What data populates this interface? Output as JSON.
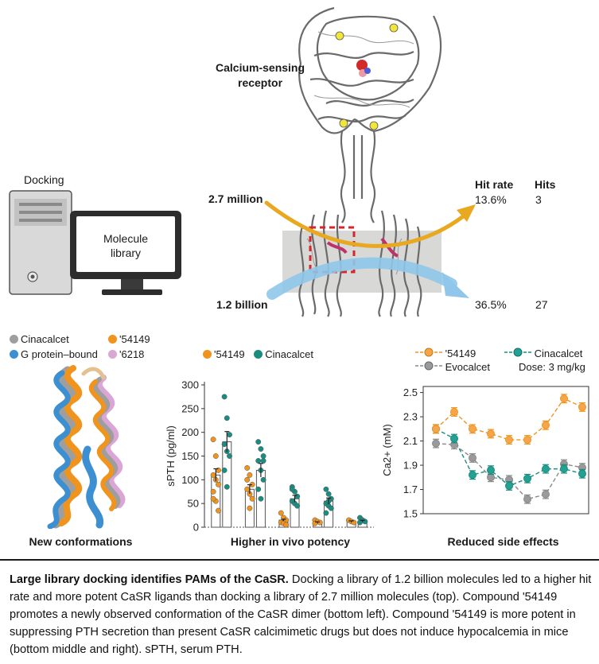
{
  "top_panel": {
    "receptor_label": "Calcium-sensing\nreceptor",
    "docking_label": "Docking",
    "screen_label": "Molecule\nlibrary",
    "header_hit_rate": "Hit rate",
    "header_hits": "Hits",
    "rows": [
      {
        "library": "2.7 million",
        "hit_rate": "13.6%",
        "hits": "3",
        "color": "#e8a820"
      },
      {
        "library": "1.2 billion",
        "hit_rate": "36.5%",
        "hits": "27",
        "color": "#6fb3e0"
      }
    ]
  },
  "left_panel": {
    "legend": [
      {
        "label": "Cinacalcet",
        "color": "#9e9e9e"
      },
      {
        "label": "'54149",
        "color": "#f0941e"
      },
      {
        "label": "G protein–bound",
        "color": "#3c8fd0"
      },
      {
        "label": "'6218",
        "color": "#d9a6d6"
      }
    ],
    "title": "New conformations"
  },
  "middle_panel": {
    "legend": [
      {
        "label": "'54149",
        "color": "#f0941e"
      },
      {
        "label": "Cinacalcet",
        "color": "#1a8c80"
      }
    ],
    "title": "Higher in vivo potency"
  },
  "right_panel": {
    "legend": [
      {
        "label": "'54149",
        "color": "#f0941e"
      },
      {
        "label": "Cinacalcet",
        "color": "#1a8c80"
      },
      {
        "label": "Evocalcet",
        "color": "#8a8a8a"
      }
    ],
    "dose_label": "Dose: 3 mg/kg",
    "title": "Reduced side effects"
  },
  "caption": {
    "title": "Large library docking identifies PAMs of the CaSR.",
    "body": " Docking a library of 1.2 billion molecules led to a higher hit rate and more potent CaSR ligands than docking a library of 2.7 million molecules (top). Compound '54149 promotes a newly observed conformation of the CaSR dimer (bottom left). Compound '54149 is more potent in suppressing PTH secretion than present CaSR calcimimetic drugs but does not induce hypocalcemia in mice (bottom middle and right). sPTH, serum PTH."
  },
  "chart_data": [
    {
      "type": "bar",
      "ylabel": "sPTH (pg/ml)",
      "ylim": [
        0,
        300
      ],
      "yticks": [
        0,
        50,
        100,
        150,
        200,
        250,
        300
      ],
      "series": [
        {
          "name": "'54149",
          "color": "#f0941e",
          "values": [
            110,
            80,
            15,
            10,
            12
          ]
        },
        {
          "name": "Cinacalcet",
          "color": "#1a8c80",
          "values": [
            180,
            120,
            60,
            55,
            13
          ]
        }
      ],
      "points": {
        "'54149": [
          [
            185,
            150,
            120,
            110,
            100,
            90,
            75,
            55,
            35,
            60
          ],
          [
            125,
            110,
            90,
            80,
            70,
            60,
            100,
            40
          ],
          [
            30,
            20,
            15,
            10,
            8,
            5
          ],
          [
            15,
            12,
            10,
            8
          ],
          [
            15,
            12,
            10
          ]
        ],
        "Cinacalcet": [
          [
            275,
            230,
            195,
            175,
            160,
            150,
            120,
            85
          ],
          [
            180,
            165,
            150,
            140,
            120,
            100,
            80,
            60,
            140
          ],
          [
            85,
            75,
            65,
            55,
            50,
            45,
            80
          ],
          [
            80,
            70,
            60,
            50,
            45,
            40,
            30,
            55
          ],
          [
            20,
            15,
            12,
            10
          ]
        ]
      }
    },
    {
      "type": "line",
      "ylabel": "Ca2+ (mM)",
      "ylim": [
        1.5,
        2.55
      ],
      "yticks": [
        1.5,
        1.7,
        1.9,
        2.1,
        2.3,
        2.5
      ],
      "series": [
        {
          "name": "'54149",
          "color": "#f0941e",
          "values": [
            2.2,
            2.34,
            2.2,
            2.16,
            2.11,
            2.11,
            2.23,
            2.45,
            2.38
          ]
        },
        {
          "name": "Cinacalcet",
          "color": "#1a8c80",
          "values": [
            2.2,
            2.12,
            1.82,
            1.86,
            1.73,
            1.79,
            1.87,
            1.87,
            1.83
          ]
        },
        {
          "name": "Evocalcet",
          "color": "#8a8a8a",
          "values": [
            2.08,
            2.07,
            1.96,
            1.8,
            1.78,
            1.62,
            1.66,
            1.91,
            1.88
          ]
        }
      ]
    }
  ]
}
